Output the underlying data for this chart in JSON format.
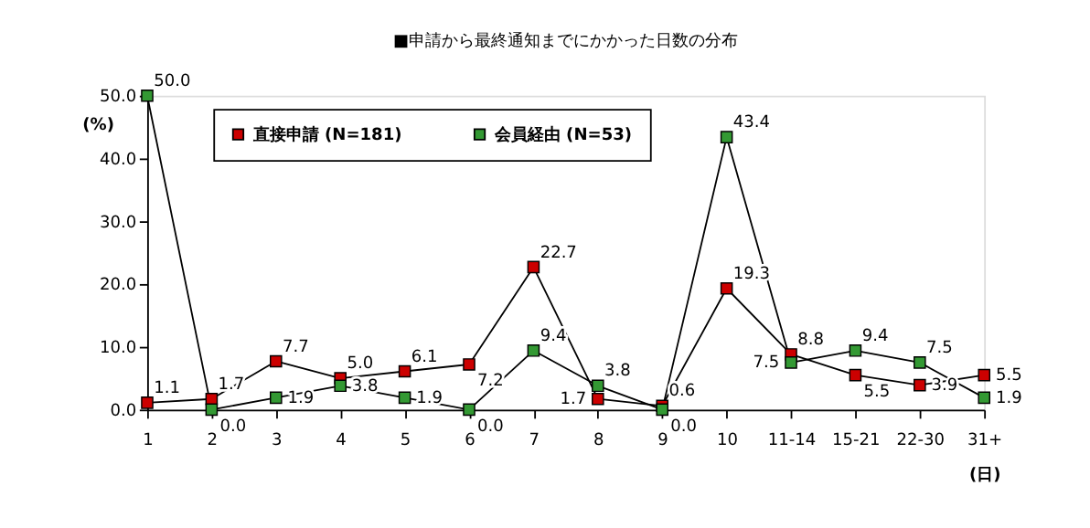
{
  "chart_data": {
    "type": "line",
    "title": "■申請から最終通知までにかかった日数の分布",
    "xlabel": "(日)",
    "ylabel": "(%)",
    "categories": [
      "1",
      "2",
      "3",
      "4",
      "5",
      "6",
      "7",
      "8",
      "9",
      "10",
      "11-14",
      "15-21",
      "22-30",
      "31+"
    ],
    "series": [
      {
        "name": "直接申請 (N=181)",
        "color": "#cc0000",
        "values": [
          1.1,
          1.7,
          7.7,
          5.0,
          6.1,
          7.2,
          22.7,
          1.7,
          0.6,
          19.3,
          8.8,
          5.5,
          3.9,
          5.5
        ],
        "value_labels": [
          "1.1",
          "1.7",
          "7.7",
          "5.0",
          "6.1",
          "7.2",
          "22.7",
          "1.7",
          "0.6",
          "19.3",
          "8.8",
          "5.5",
          "3.9",
          "5.5"
        ]
      },
      {
        "name": "会員経由 (N=53)",
        "color": "#339933",
        "values": [
          50.0,
          0.0,
          1.9,
          3.8,
          1.9,
          0.0,
          9.4,
          3.8,
          0.0,
          43.4,
          7.5,
          9.4,
          7.5,
          1.9
        ],
        "value_labels": [
          "50.0",
          "0.0",
          "1.9",
          "3.8",
          "1.9",
          "0.0",
          "9.4",
          "3.8",
          "0.0",
          "43.4",
          "7.5",
          "9.4",
          "7.5",
          "1.9"
        ]
      }
    ],
    "ylim": [
      0,
      50
    ],
    "yticks": [
      {
        "value": 0,
        "label": "0.0"
      },
      {
        "value": 10,
        "label": "10.0"
      },
      {
        "value": 20,
        "label": "20.0"
      },
      {
        "value": 30,
        "label": "30.0"
      },
      {
        "value": 40,
        "label": "40.0"
      },
      {
        "value": 50,
        "label": "50.0"
      }
    ],
    "marker": "square",
    "legend": "top"
  }
}
